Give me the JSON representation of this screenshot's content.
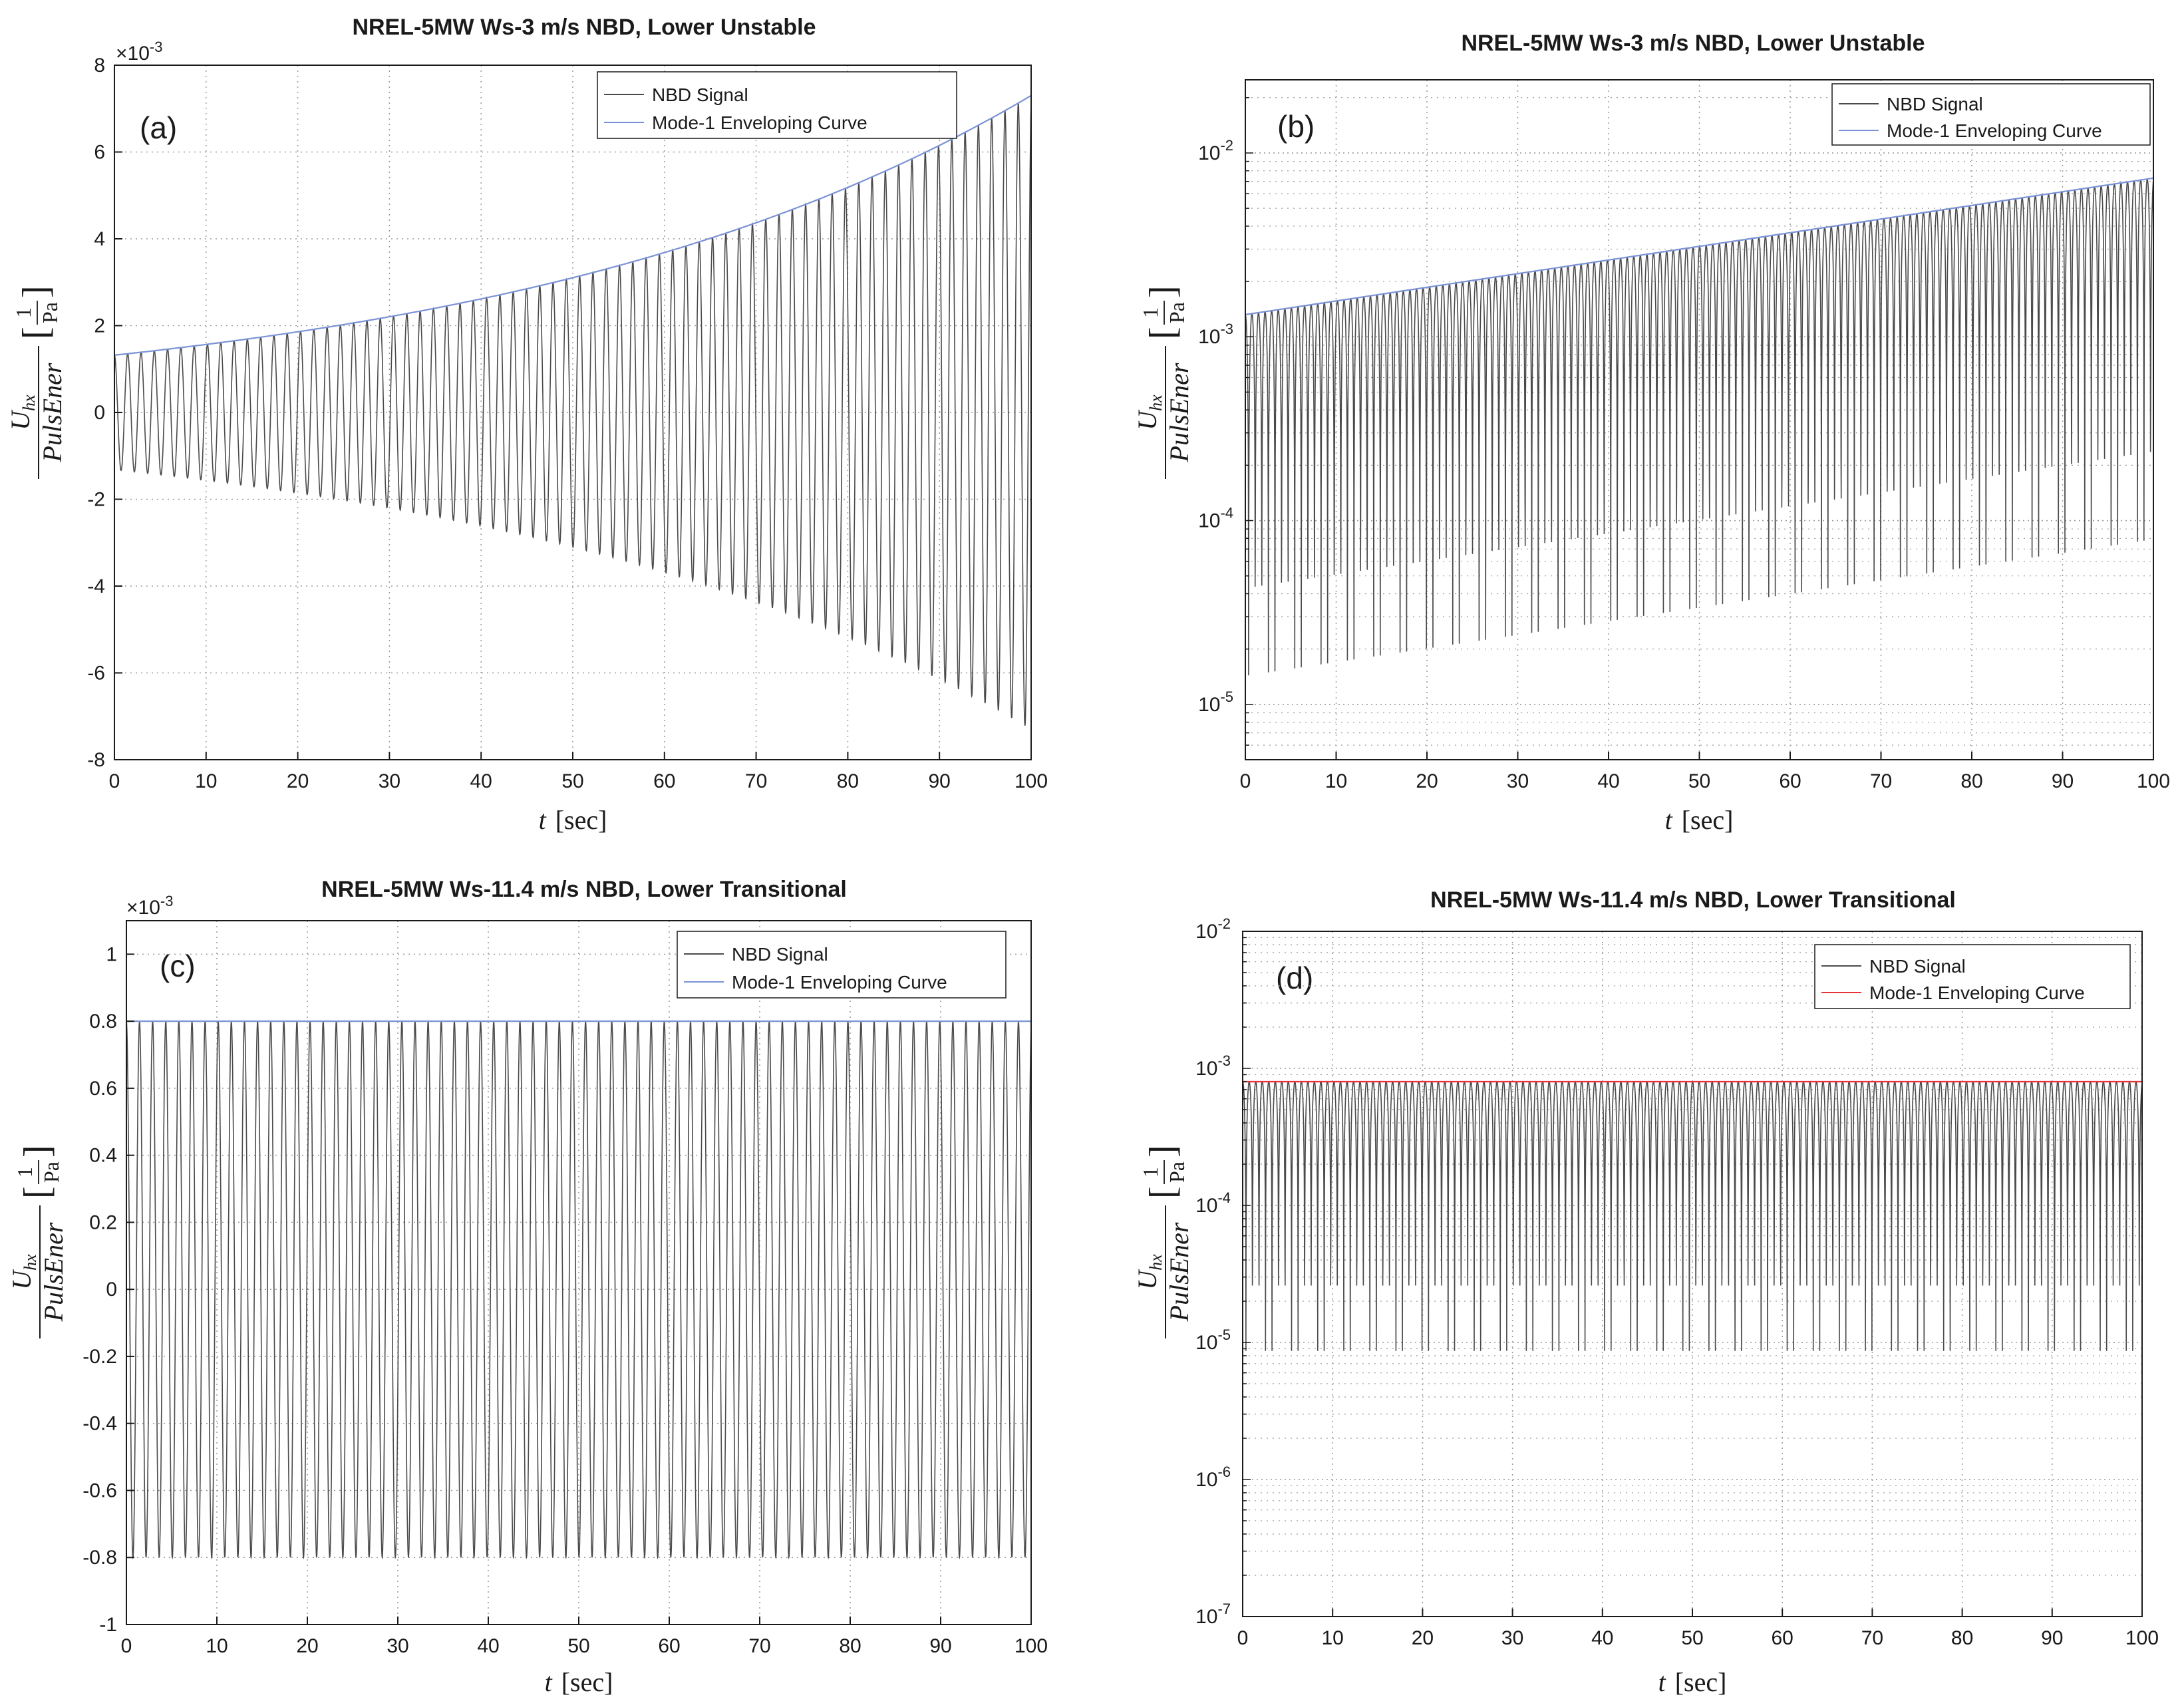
{
  "colors": {
    "signal": "#4a4a4a",
    "envelope_blue": "#7b93d6",
    "envelope_red": "#e8333a",
    "grid": "#9a9a9a",
    "axis": "#1a1a1a"
  },
  "panels": {
    "a": {
      "exponent": "×10",
      "exponent_power": "-3"
    },
    "c": {
      "exponent": "×10",
      "exponent_power": "-3"
    }
  },
  "labels": {
    "ylabel_num": "U",
    "ylabel_num_sub": "hx",
    "ylabel_den": "PulsEner",
    "ylabel_unit_num": "1",
    "ylabel_unit_den": "Pa",
    "xlabel_var": "t",
    "xlabel_unit": "[sec]"
  },
  "chart_data": [
    {
      "id": "a",
      "panel_label": "(a)",
      "type": "line",
      "scale": "linear",
      "title": "NREL-5MW Ws-3 m/s NBD, Lower Unstable",
      "xlabel": "t [sec]",
      "ylabel": "U_hx / PulsEner [1/Pa]",
      "xlim": [
        0,
        100
      ],
      "ylim": [
        -0.008,
        0.008
      ],
      "xticks": [
        0,
        10,
        20,
        30,
        40,
        50,
        60,
        70,
        80,
        90,
        100
      ],
      "xtick_labels": [
        "0",
        "10",
        "20",
        "30",
        "40",
        "50",
        "60",
        "70",
        "80",
        "90",
        "100"
      ],
      "yticks": [
        -0.008,
        -0.006,
        -0.004,
        -0.002,
        0,
        0.002,
        0.004,
        0.006,
        0.008
      ],
      "ytick_labels": [
        "-8",
        "-6",
        "-4",
        "-2",
        "0",
        "2",
        "4",
        "6",
        "8"
      ],
      "legend": {
        "position": "top-right",
        "entries": [
          {
            "name": "NBD Signal",
            "color": "#4a4a4a"
          },
          {
            "name": "Mode-1 Enveloping Curve",
            "color": "#7b93d6"
          }
        ]
      },
      "series": [
        {
          "name": "NBD Signal",
          "kind": "damped_oscillation",
          "amp0": 0.00132,
          "amp_end": 0.0073,
          "period_s": 1.45
        },
        {
          "name": "Mode-1 Enveloping Curve",
          "kind": "exponential",
          "y0": 0.00132,
          "y_end": 0.0073
        }
      ]
    },
    {
      "id": "b",
      "panel_label": "(b)",
      "type": "line",
      "scale": "log",
      "title": "NREL-5MW Ws-3 m/s NBD, Lower Unstable",
      "xlabel": "t [sec]",
      "ylabel": "U_hx / PulsEner [1/Pa]",
      "xlim": [
        0,
        100
      ],
      "ylim": [
        5e-06,
        0.025
      ],
      "xticks": [
        0,
        10,
        20,
        30,
        40,
        50,
        60,
        70,
        80,
        90,
        100
      ],
      "xtick_labels": [
        "0",
        "10",
        "20",
        "30",
        "40",
        "50",
        "60",
        "70",
        "80",
        "90",
        "100"
      ],
      "ytick_bases": [
        "10",
        "10",
        "10",
        "10"
      ],
      "ytick_powers": [
        "-5",
        "-4",
        "-3",
        "-2"
      ],
      "legend": {
        "position": "top-right",
        "entries": [
          {
            "name": "NBD Signal",
            "color": "#4a4a4a"
          },
          {
            "name": "Mode-1 Enveloping Curve",
            "color": "#7b93d6"
          }
        ]
      },
      "series": [
        {
          "name": "NBD Signal",
          "kind": "abs_oscillation",
          "amp0": 0.00132,
          "amp_end": 0.0073,
          "period_s": 1.45
        },
        {
          "name": "Mode-1 Enveloping Curve",
          "kind": "exponential",
          "y0": 0.00132,
          "y_end": 0.0073
        }
      ]
    },
    {
      "id": "c",
      "panel_label": "(c)",
      "type": "line",
      "scale": "linear",
      "title": "NREL-5MW Ws-11.4 m/s NBD, Lower Transitional",
      "xlabel": "t [sec]",
      "ylabel": "U_hx / PulsEner [1/Pa]",
      "xlim": [
        0,
        100
      ],
      "ylim": [
        -0.001,
        0.0011
      ],
      "xticks": [
        0,
        10,
        20,
        30,
        40,
        50,
        60,
        70,
        80,
        90,
        100
      ],
      "xtick_labels": [
        "0",
        "10",
        "20",
        "30",
        "40",
        "50",
        "60",
        "70",
        "80",
        "90",
        "100"
      ],
      "yticks": [
        -0.001,
        -0.0008,
        -0.0006,
        -0.0004,
        -0.0002,
        0,
        0.0002,
        0.0004,
        0.0006,
        0.0008,
        0.001
      ],
      "ytick_labels": [
        "-1",
        "-0.8",
        "-0.6",
        "-0.4",
        "-0.2",
        "0",
        "0.2",
        "0.4",
        "0.6",
        "0.8",
        "1"
      ],
      "legend": {
        "position": "top-right",
        "entries": [
          {
            "name": "NBD Signal",
            "color": "#4a4a4a"
          },
          {
            "name": "Mode-1 Enveloping Curve",
            "color": "#7b93d6"
          }
        ]
      },
      "series": [
        {
          "name": "NBD Signal",
          "kind": "damped_oscillation",
          "amp0": 0.0008,
          "amp_end": 0.0008,
          "period_s": 1.45
        },
        {
          "name": "Mode-1 Enveloping Curve",
          "kind": "constant",
          "y0": 0.0008,
          "y_end": 0.0008
        }
      ]
    },
    {
      "id": "d",
      "panel_label": "(d)",
      "type": "line",
      "scale": "log",
      "title": "NREL-5MW Ws-11.4 m/s NBD, Lower Transitional",
      "xlabel": "t [sec]",
      "ylabel": "U_hx / PulsEner [1/Pa]",
      "xlim": [
        0,
        100
      ],
      "ylim": [
        1e-07,
        0.01
      ],
      "xticks": [
        0,
        10,
        20,
        30,
        40,
        50,
        60,
        70,
        80,
        90,
        100
      ],
      "xtick_labels": [
        "0",
        "10",
        "20",
        "30",
        "40",
        "50",
        "60",
        "70",
        "80",
        "90",
        "100"
      ],
      "ytick_bases": [
        "10",
        "10",
        "10",
        "10",
        "10",
        "10"
      ],
      "ytick_powers": [
        "-7",
        "-6",
        "-5",
        "-4",
        "-3",
        "-2"
      ],
      "legend": {
        "position": "top-right",
        "entries": [
          {
            "name": "NBD Signal",
            "color": "#4a4a4a"
          },
          {
            "name": "Mode-1 Enveloping Curve",
            "color": "#e8333a"
          }
        ]
      },
      "series": [
        {
          "name": "NBD Signal",
          "kind": "abs_oscillation",
          "amp0": 0.0008,
          "amp_end": 0.0008,
          "period_s": 1.45
        },
        {
          "name": "Mode-1 Enveloping Curve",
          "kind": "constant",
          "y0": 0.0008,
          "y_end": 0.0008
        }
      ]
    }
  ]
}
